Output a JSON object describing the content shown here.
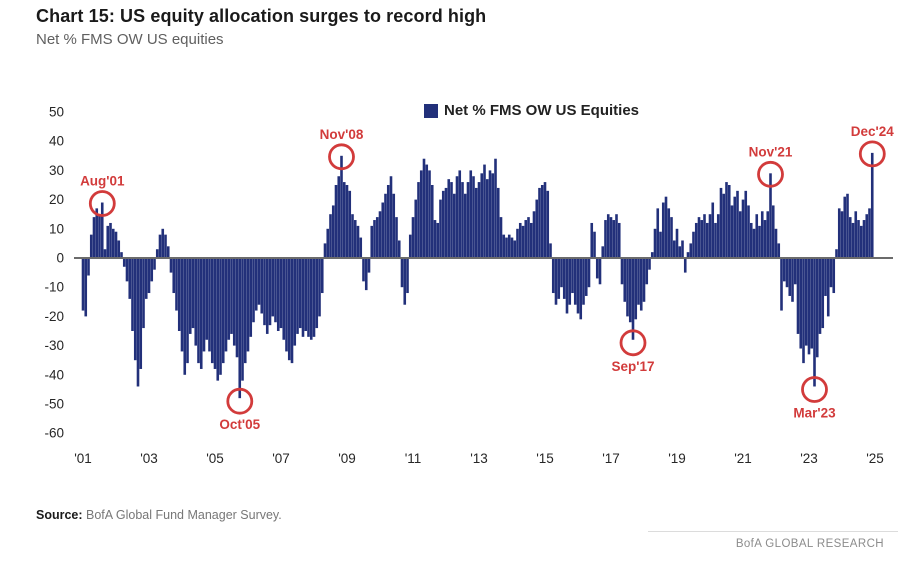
{
  "header": {
    "title": "Chart 15: US equity allocation surges to record high",
    "subtitle": "Net % FMS OW US equities"
  },
  "legend": {
    "label": "Net % FMS OW US Equities"
  },
  "footer": {
    "source_label": "Source:",
    "source_text": " BofA Global Fund Manager Survey.",
    "brand": "BofA GLOBAL RESEARCH"
  },
  "colors": {
    "bar": "#22307a",
    "annotation": "#d23b3b",
    "axis": "#6b6b6b",
    "tick_text": "#262626"
  },
  "chart_data": {
    "type": "bar",
    "title": "Chart 15: US equity allocation surges to record high",
    "ylabel": "Net % FMS OW US equities",
    "start": "2001-01",
    "frequency": "monthly",
    "ylim": [
      -60,
      50
    ],
    "grid": false,
    "legend_position": "top-center",
    "x_tick_labels": [
      "'01",
      "'03",
      "'05",
      "'07",
      "'09",
      "'11",
      "'13",
      "'15",
      "'17",
      "'19",
      "'21",
      "'23",
      "'25"
    ],
    "x_tick_interval_months": 24,
    "y_ticks": [
      50,
      40,
      30,
      20,
      10,
      0,
      -10,
      -20,
      -30,
      -40,
      -50,
      -60
    ],
    "series": [
      {
        "name": "Net % FMS OW US Equities",
        "values": [
          -18,
          -20,
          -6,
          8,
          14,
          17,
          15,
          19,
          3,
          11,
          12,
          10,
          9,
          6,
          2,
          -3,
          -8,
          -14,
          -25,
          -35,
          -44,
          -38,
          -24,
          -14,
          -12,
          -8,
          -4,
          3,
          8,
          10,
          8,
          4,
          -5,
          -12,
          -18,
          -25,
          -32,
          -40,
          -36,
          -26,
          -24,
          -30,
          -36,
          -38,
          -32,
          -28,
          -32,
          -36,
          -38,
          -42,
          -40,
          -36,
          -32,
          -28,
          -26,
          -30,
          -34,
          -48,
          -42,
          -36,
          -32,
          -27,
          -22,
          -18,
          -16,
          -19,
          -23,
          -26,
          -23,
          -20,
          -22,
          -25,
          -24,
          -28,
          -32,
          -35,
          -36,
          -30,
          -26,
          -24,
          -27,
          -25,
          -27,
          -28,
          -27,
          -24,
          -20,
          -12,
          5,
          10,
          15,
          18,
          25,
          28,
          35,
          26,
          25,
          23,
          15,
          13,
          11,
          7,
          -8,
          -11,
          -5,
          11,
          13,
          14,
          16,
          19,
          22,
          25,
          28,
          22,
          14,
          6,
          -10,
          -16,
          -12,
          8,
          14,
          20,
          26,
          30,
          34,
          32,
          30,
          25,
          13,
          12,
          20,
          23,
          24,
          27,
          26,
          22,
          28,
          30,
          26,
          22,
          26,
          30,
          28,
          24,
          26,
          29,
          32,
          27,
          30,
          29,
          34,
          24,
          14,
          8,
          7,
          8,
          7,
          6,
          10,
          12,
          11,
          13,
          14,
          12,
          16,
          20,
          24,
          25,
          26,
          23,
          5,
          -12,
          -16,
          -14,
          -10,
          -14,
          -19,
          -16,
          -12,
          -16,
          -19,
          -21,
          -16,
          -13,
          -10,
          12,
          9,
          -7,
          -9,
          4,
          13,
          15,
          14,
          13,
          15,
          12,
          -9,
          -15,
          -20,
          -22,
          -28,
          -21,
          -16,
          -18,
          -15,
          -9,
          -4,
          2,
          10,
          17,
          9,
          19,
          21,
          17,
          14,
          6,
          10,
          4,
          6,
          -5,
          2,
          5,
          9,
          12,
          14,
          13,
          15,
          12,
          15,
          19,
          12,
          15,
          24,
          22,
          26,
          25,
          18,
          21,
          23,
          16,
          20,
          23,
          18,
          12,
          10,
          15,
          11,
          16,
          13,
          16,
          29,
          18,
          10,
          5,
          -18,
          -8,
          -10,
          -13,
          -15,
          -9,
          -26,
          -31,
          -36,
          -30,
          -33,
          -31,
          -44,
          -34,
          -26,
          -24,
          -13,
          -20,
          -10,
          -12,
          3,
          17,
          16,
          21,
          22,
          14,
          12,
          16,
          13,
          11,
          13,
          15,
          17,
          36
        ]
      }
    ],
    "annotations": [
      {
        "label": "Aug'01",
        "month": "2001-08",
        "value": 19,
        "label_placement": "above"
      },
      {
        "label": "Oct'05",
        "month": "2005-10",
        "value": -48,
        "label_placement": "below"
      },
      {
        "label": "Nov'08",
        "month": "2008-11",
        "value": 35,
        "label_placement": "above"
      },
      {
        "label": "Sep'17",
        "month": "2017-09",
        "value": -28,
        "label_placement": "below"
      },
      {
        "label": "Nov'21",
        "month": "2021-11",
        "value": 29,
        "label_placement": "above"
      },
      {
        "label": "Mar'23",
        "month": "2023-03",
        "value": -44,
        "label_placement": "below"
      },
      {
        "label": "Dec'24",
        "month": "2024-12",
        "value": 36,
        "label_placement": "above"
      }
    ]
  }
}
